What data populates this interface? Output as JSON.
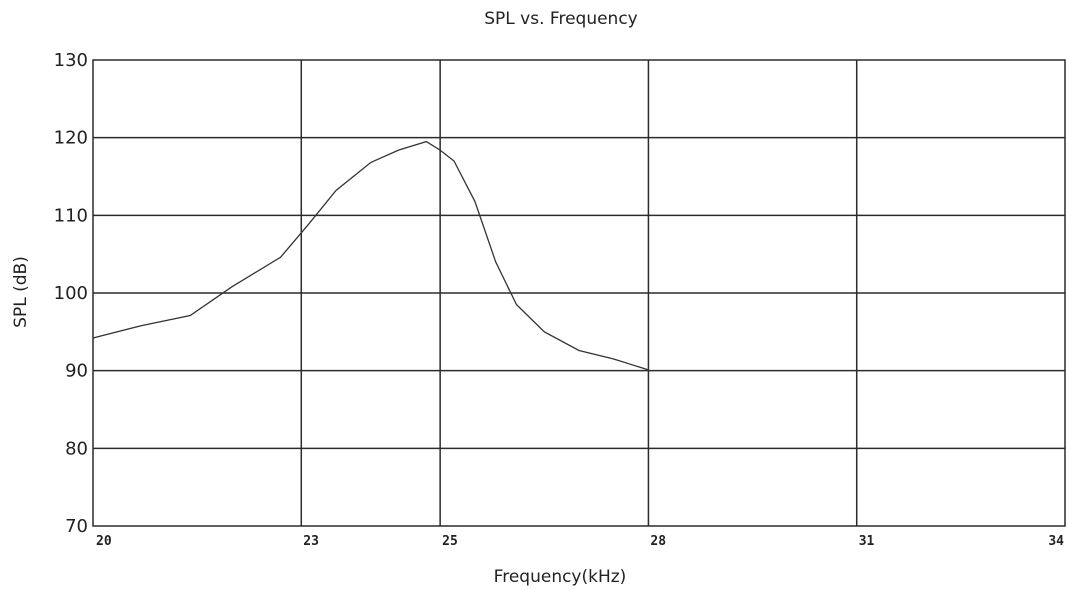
{
  "chart_data": {
    "type": "line",
    "title": "SPL vs. Frequency",
    "xlabel": "Frequency(kHz)",
    "ylabel": "SPL (dB)",
    "xlim": [
      20,
      34
    ],
    "ylim": [
      70,
      130
    ],
    "xticks": [
      20,
      23,
      25,
      28,
      31,
      34
    ],
    "xtick_labels": [
      "20",
      "23",
      "25",
      "28",
      "31",
      "34"
    ],
    "xgrid": [
      23,
      25,
      28,
      31
    ],
    "yticks": [
      70,
      80,
      90,
      100,
      110,
      120,
      130
    ],
    "ytick_labels": [
      "70",
      "80",
      "90",
      "100",
      "110",
      "120",
      "130"
    ],
    "grid": true,
    "series": [
      {
        "x": [
          20.0,
          20.7,
          21.4,
          22.0,
          22.7,
          23.1,
          23.5,
          24.0,
          24.4,
          24.8,
          25.0,
          25.2,
          25.5,
          25.8,
          26.1,
          26.5,
          27.0,
          27.5,
          28.0
        ],
        "y": [
          94.2,
          95.8,
          97.1,
          100.8,
          104.6,
          108.8,
          113.2,
          116.8,
          118.4,
          119.5,
          118.4,
          117.0,
          111.8,
          104.0,
          98.5,
          95.0,
          92.6,
          91.5,
          90.1
        ]
      }
    ]
  }
}
